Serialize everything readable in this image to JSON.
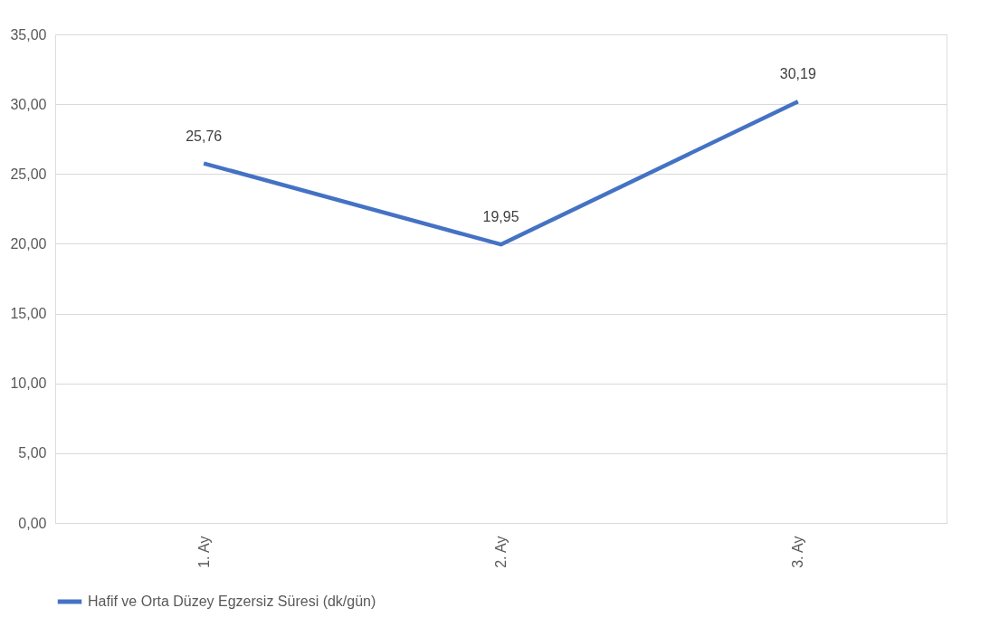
{
  "chart_data": {
    "type": "line",
    "categories": [
      "1. Ay",
      "2. Ay",
      "3. Ay"
    ],
    "series": [
      {
        "name": "Hafif ve Orta Düzey Egzersiz Süresi (dk/gün)",
        "color": "#4472c4",
        "values": [
          25.76,
          19.95,
          30.19
        ],
        "value_labels": [
          "25,76",
          "19,95",
          "30,19"
        ]
      }
    ],
    "ylim": [
      0,
      35
    ],
    "yticks": [
      {
        "value": 0,
        "label": "0,00"
      },
      {
        "value": 5,
        "label": "5,00"
      },
      {
        "value": 10,
        "label": "10,00"
      },
      {
        "value": 15,
        "label": "15,00"
      },
      {
        "value": 20,
        "label": "20,00"
      },
      {
        "value": 25,
        "label": "25,00"
      },
      {
        "value": 30,
        "label": "30,00"
      },
      {
        "value": 35,
        "label": "35,00"
      }
    ],
    "grid": "y",
    "legend": "bottom",
    "marker": "none",
    "line_style": "solid"
  }
}
